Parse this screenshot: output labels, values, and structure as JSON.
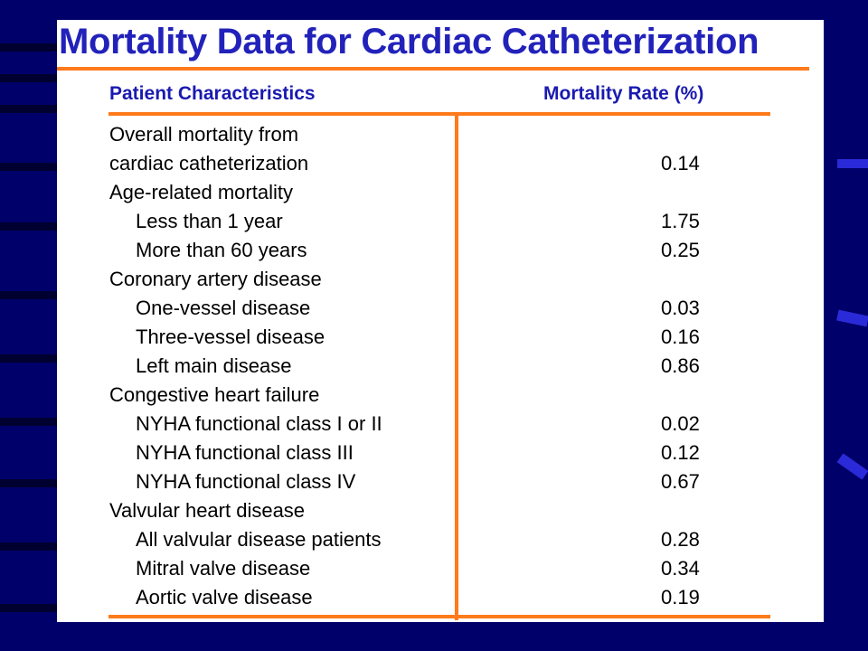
{
  "slide": {
    "title": "Mortality Data for Cardiac Catheterization",
    "colors": {
      "background": "#00006a",
      "title": "#2222bb",
      "rule": "#ff7a1a",
      "header_text": "#1a1ab0"
    }
  },
  "table": {
    "headers": {
      "characteristic": "Patient Characteristics",
      "rate": "Mortality Rate (%)"
    },
    "rows": [
      {
        "label": "Overall mortality from",
        "value": "",
        "indent": false
      },
      {
        "label": "cardiac catheterization",
        "value": "0.14",
        "indent": false
      },
      {
        "label": "Age-related mortality",
        "value": "",
        "indent": false
      },
      {
        "label": "Less than 1  year",
        "value": "1.75",
        "indent": true
      },
      {
        "label": "More than 60 years",
        "value": "0.25",
        "indent": true
      },
      {
        "label": "Coronary artery disease",
        "value": "",
        "indent": false
      },
      {
        "label": "One-vessel disease",
        "value": "0.03",
        "indent": true
      },
      {
        "label": "Three-vessel disease",
        "value": "0.16",
        "indent": true
      },
      {
        "label": "Left main disease",
        "value": "0.86",
        "indent": true
      },
      {
        "label": "Congestive heart failure",
        "value": "",
        "indent": false
      },
      {
        "label": "NYHA functional class I or II",
        "value": "0.02",
        "indent": true
      },
      {
        "label": "NYHA functional class III",
        "value": "0.12",
        "indent": true
      },
      {
        "label": "NYHA functional class IV",
        "value": "0.67",
        "indent": true
      },
      {
        "label": "Valvular heart disease",
        "value": "",
        "indent": false
      },
      {
        "label": "All valvular disease patients",
        "value": "0.28",
        "indent": true
      },
      {
        "label": "Mitral valve disease",
        "value": "0.34",
        "indent": true
      },
      {
        "label": "Aortic valve disease",
        "value": "0.19",
        "indent": true
      }
    ]
  }
}
